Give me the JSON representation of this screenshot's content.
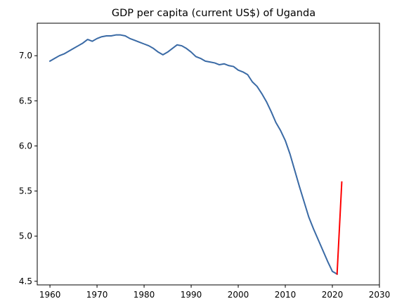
{
  "chart_data": {
    "type": "line",
    "title": "GDP per capita (current US$) of Uganda",
    "xlabel": "",
    "ylabel": "",
    "xlim": [
      1957.3,
      2030
    ],
    "ylim": [
      4.46,
      7.36
    ],
    "xticks": [
      1960,
      1970,
      1980,
      1990,
      2000,
      2010,
      2020,
      2030
    ],
    "yticks": [
      4.5,
      5.0,
      5.5,
      6.0,
      6.5,
      7.0
    ],
    "grid": false,
    "legend": "none",
    "series": [
      {
        "color": "#3a6aa5",
        "x": [
          1960,
          1961,
          1962,
          1963,
          1964,
          1965,
          1966,
          1967,
          1968,
          1969,
          1970,
          1971,
          1972,
          1973,
          1974,
          1975,
          1976,
          1977,
          1978,
          1979,
          1980,
          1981,
          1982,
          1983,
          1984,
          1985,
          1986,
          1987,
          1988,
          1989,
          1990,
          1991,
          1992,
          1993,
          1994,
          1995,
          1996,
          1997,
          1998,
          1999,
          2000,
          2001,
          2002,
          2003,
          2004,
          2005,
          2006,
          2007,
          2008,
          2009,
          2010,
          2011,
          2012,
          2013,
          2014,
          2015,
          2016,
          2017,
          2018,
          2019,
          2020,
          2021
        ],
        "values": [
          6.94,
          6.97,
          7.0,
          7.02,
          7.05,
          7.08,
          7.11,
          7.14,
          7.18,
          7.16,
          7.19,
          7.21,
          7.22,
          7.22,
          7.23,
          7.23,
          7.22,
          7.19,
          7.17,
          7.15,
          7.13,
          7.11,
          7.08,
          7.04,
          7.01,
          7.04,
          7.08,
          7.12,
          7.11,
          7.08,
          7.04,
          6.99,
          6.97,
          6.94,
          6.93,
          6.92,
          6.9,
          6.91,
          6.89,
          6.88,
          6.84,
          6.82,
          6.79,
          6.71,
          6.66,
          6.58,
          6.49,
          6.38,
          6.26,
          6.17,
          6.06,
          5.91,
          5.73,
          5.55,
          5.38,
          5.21,
          5.08,
          4.96,
          4.84,
          4.72,
          4.61,
          4.58
        ]
      },
      {
        "color": "#ff0000",
        "x": [
          2021,
          2022
        ],
        "values": [
          4.58,
          5.6
        ]
      }
    ]
  }
}
